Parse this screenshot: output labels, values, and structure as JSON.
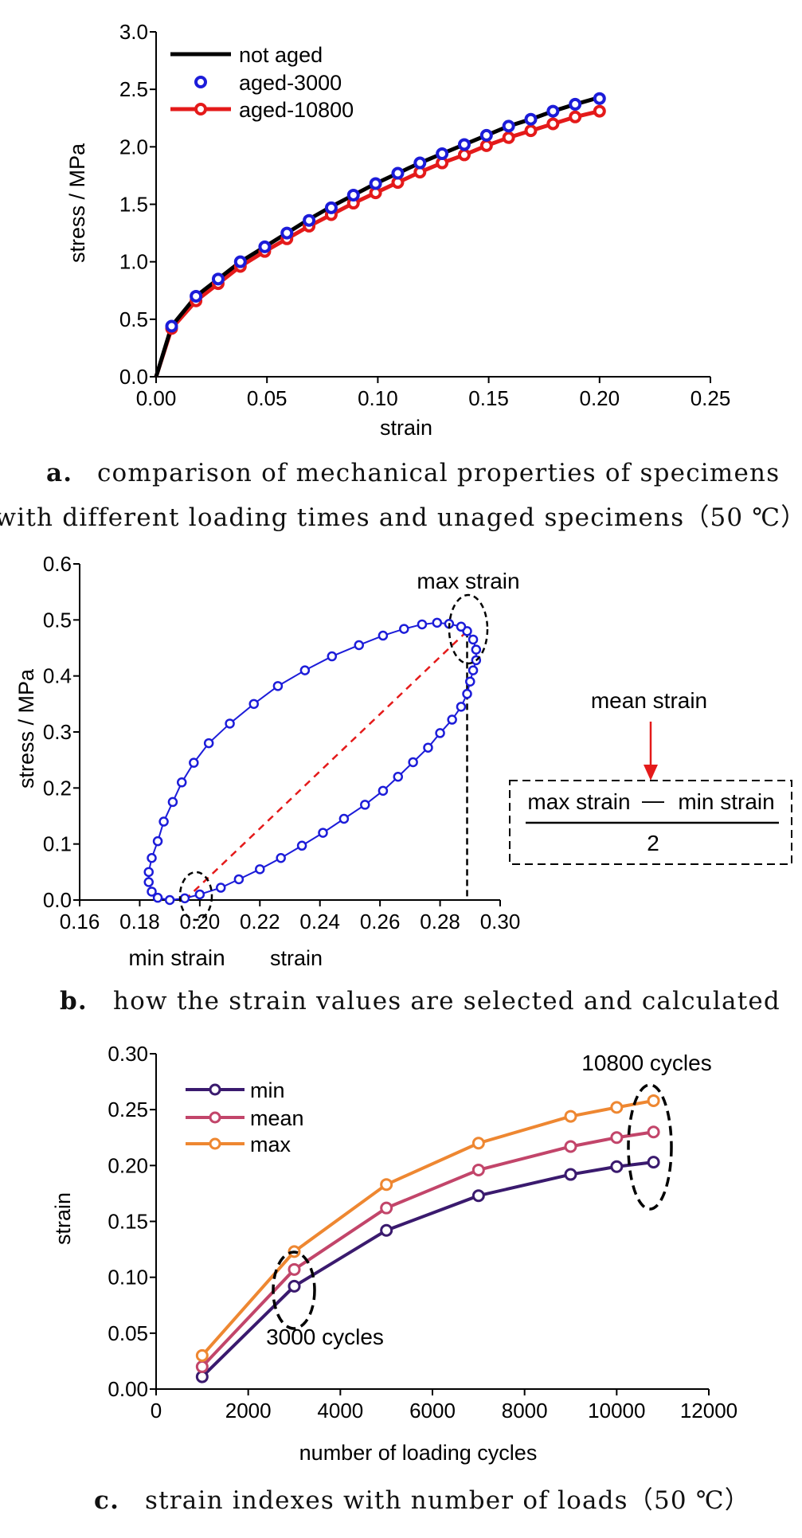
{
  "captions": {
    "a_letter": "a.",
    "a_line1": "comparison of mechanical properties of specimens",
    "a_line2": "with different loading times and unaged specimens（50 ℃）",
    "b_letter": "b.",
    "b_line1": "how the strain values are selected and calculated",
    "c_letter": "c.",
    "c_line1": "strain indexes with number of loads（50 ℃）"
  },
  "chart_data": [
    {
      "id": "a",
      "type": "line",
      "xlabel": "strain",
      "ylabel": "stress / MPa",
      "xlim": [
        0,
        0.25
      ],
      "ylim": [
        0,
        3.0
      ],
      "xticks": [
        "0.00",
        "0.05",
        "0.10",
        "0.15",
        "0.20",
        "0.25"
      ],
      "yticks": [
        "0.0",
        "0.5",
        "1.0",
        "1.5",
        "2.0",
        "2.5",
        "3.0"
      ],
      "legend_position": "top-left",
      "series": [
        {
          "name": "not aged",
          "color": "#000000",
          "style": "line",
          "x": [
            0,
            0.007,
            0.018,
            0.028,
            0.038,
            0.049,
            0.059,
            0.069,
            0.079,
            0.089,
            0.099,
            0.109,
            0.119,
            0.129,
            0.139,
            0.149,
            0.159,
            0.169,
            0.179,
            0.189,
            0.2
          ],
          "y": [
            0,
            0.44,
            0.7,
            0.85,
            1.0,
            1.13,
            1.25,
            1.37,
            1.48,
            1.58,
            1.68,
            1.77,
            1.86,
            1.94,
            2.02,
            2.1,
            2.18,
            2.24,
            2.31,
            2.37,
            2.43
          ]
        },
        {
          "name": "aged-3000",
          "color": "#1c1cd9",
          "style": "markers",
          "x": [
            0.007,
            0.018,
            0.028,
            0.038,
            0.049,
            0.059,
            0.069,
            0.079,
            0.089,
            0.099,
            0.109,
            0.119,
            0.129,
            0.139,
            0.149,
            0.159,
            0.169,
            0.179,
            0.189,
            0.2
          ],
          "y": [
            0.44,
            0.7,
            0.85,
            1.0,
            1.13,
            1.25,
            1.36,
            1.47,
            1.58,
            1.68,
            1.77,
            1.86,
            1.94,
            2.02,
            2.1,
            2.18,
            2.24,
            2.31,
            2.37,
            2.42
          ]
        },
        {
          "name": "aged-10800",
          "color": "#e41a1a",
          "style": "line-markers",
          "x": [
            0,
            0.007,
            0.018,
            0.028,
            0.038,
            0.049,
            0.059,
            0.069,
            0.079,
            0.089,
            0.099,
            0.109,
            0.119,
            0.129,
            0.139,
            0.149,
            0.159,
            0.169,
            0.179,
            0.189,
            0.2
          ],
          "y": [
            0,
            0.42,
            0.66,
            0.81,
            0.96,
            1.09,
            1.2,
            1.31,
            1.41,
            1.51,
            1.6,
            1.69,
            1.78,
            1.86,
            1.93,
            2.01,
            2.08,
            2.14,
            2.2,
            2.26,
            2.31
          ]
        }
      ]
    },
    {
      "id": "b",
      "type": "scatter",
      "xlabel": "strain",
      "ylabel": "stress / MPa",
      "xlim": [
        0.16,
        0.3
      ],
      "ylim": [
        0,
        0.6
      ],
      "xticks": [
        "0.16",
        "0.18",
        "0.20",
        "0.22",
        "0.24",
        "0.26",
        "0.28",
        "0.30"
      ],
      "yticks": [
        "0.0",
        "0.1",
        "0.2",
        "0.3",
        "0.4",
        "0.5",
        "0.6"
      ],
      "loop_color": "#1c1cd9",
      "loop_x": [
        0.289,
        0.291,
        0.292,
        0.292,
        0.291,
        0.29,
        0.289,
        0.287,
        0.284,
        0.28,
        0.276,
        0.271,
        0.266,
        0.261,
        0.255,
        0.248,
        0.241,
        0.234,
        0.227,
        0.22,
        0.213,
        0.207,
        0.2,
        0.195,
        0.19,
        0.186,
        0.184,
        0.183,
        0.183,
        0.184,
        0.186,
        0.188,
        0.191,
        0.194,
        0.198,
        0.203,
        0.21,
        0.218,
        0.226,
        0.235,
        0.244,
        0.253,
        0.261,
        0.268,
        0.274,
        0.279,
        0.283,
        0.287,
        0.289
      ],
      "loop_y": [
        0.48,
        0.465,
        0.447,
        0.428,
        0.41,
        0.39,
        0.368,
        0.345,
        0.322,
        0.298,
        0.272,
        0.246,
        0.22,
        0.195,
        0.17,
        0.145,
        0.12,
        0.097,
        0.075,
        0.055,
        0.037,
        0.022,
        0.01,
        0.003,
        0.0,
        0.004,
        0.015,
        0.032,
        0.05,
        0.075,
        0.105,
        0.14,
        0.175,
        0.21,
        0.245,
        0.28,
        0.315,
        0.35,
        0.382,
        0.41,
        0.435,
        0.455,
        0.472,
        0.484,
        0.492,
        0.495,
        0.493,
        0.488,
        0.48
      ],
      "min_point": [
        0.195,
        0.0
      ],
      "max_point": [
        0.289,
        0.48
      ],
      "annotations": {
        "max": "max strain",
        "min": "min strain",
        "mean_title": "mean strain",
        "numerator_left": "max strain",
        "minus": "—",
        "numerator_right": "min strain",
        "denominator": "2"
      }
    },
    {
      "id": "c",
      "type": "line",
      "xlabel": "number of loading cycles",
      "ylabel": "strain",
      "xlim": [
        0,
        12000
      ],
      "ylim": [
        0,
        0.3
      ],
      "xticks": [
        "0",
        "2000",
        "4000",
        "6000",
        "8000",
        "10000",
        "12000"
      ],
      "yticks": [
        "0.00",
        "0.05",
        "0.10",
        "0.15",
        "0.20",
        "0.25",
        "0.30"
      ],
      "legend_position": "top-left",
      "x": [
        1000,
        3000,
        5000,
        7000,
        9000,
        10000,
        10800
      ],
      "series": [
        {
          "name": "min",
          "color": "#3a1a6e",
          "values": [
            0.011,
            0.092,
            0.142,
            0.173,
            0.192,
            0.199,
            0.203
          ]
        },
        {
          "name": "mean",
          "color": "#c2456a",
          "values": [
            0.02,
            0.107,
            0.162,
            0.196,
            0.217,
            0.225,
            0.23
          ]
        },
        {
          "name": "max",
          "color": "#ee8731",
          "values": [
            0.03,
            0.123,
            0.183,
            0.22,
            0.244,
            0.252,
            0.258
          ]
        }
      ],
      "annotations": {
        "a3000": "3000 cycles",
        "a10800": "10800 cycles"
      }
    }
  ]
}
